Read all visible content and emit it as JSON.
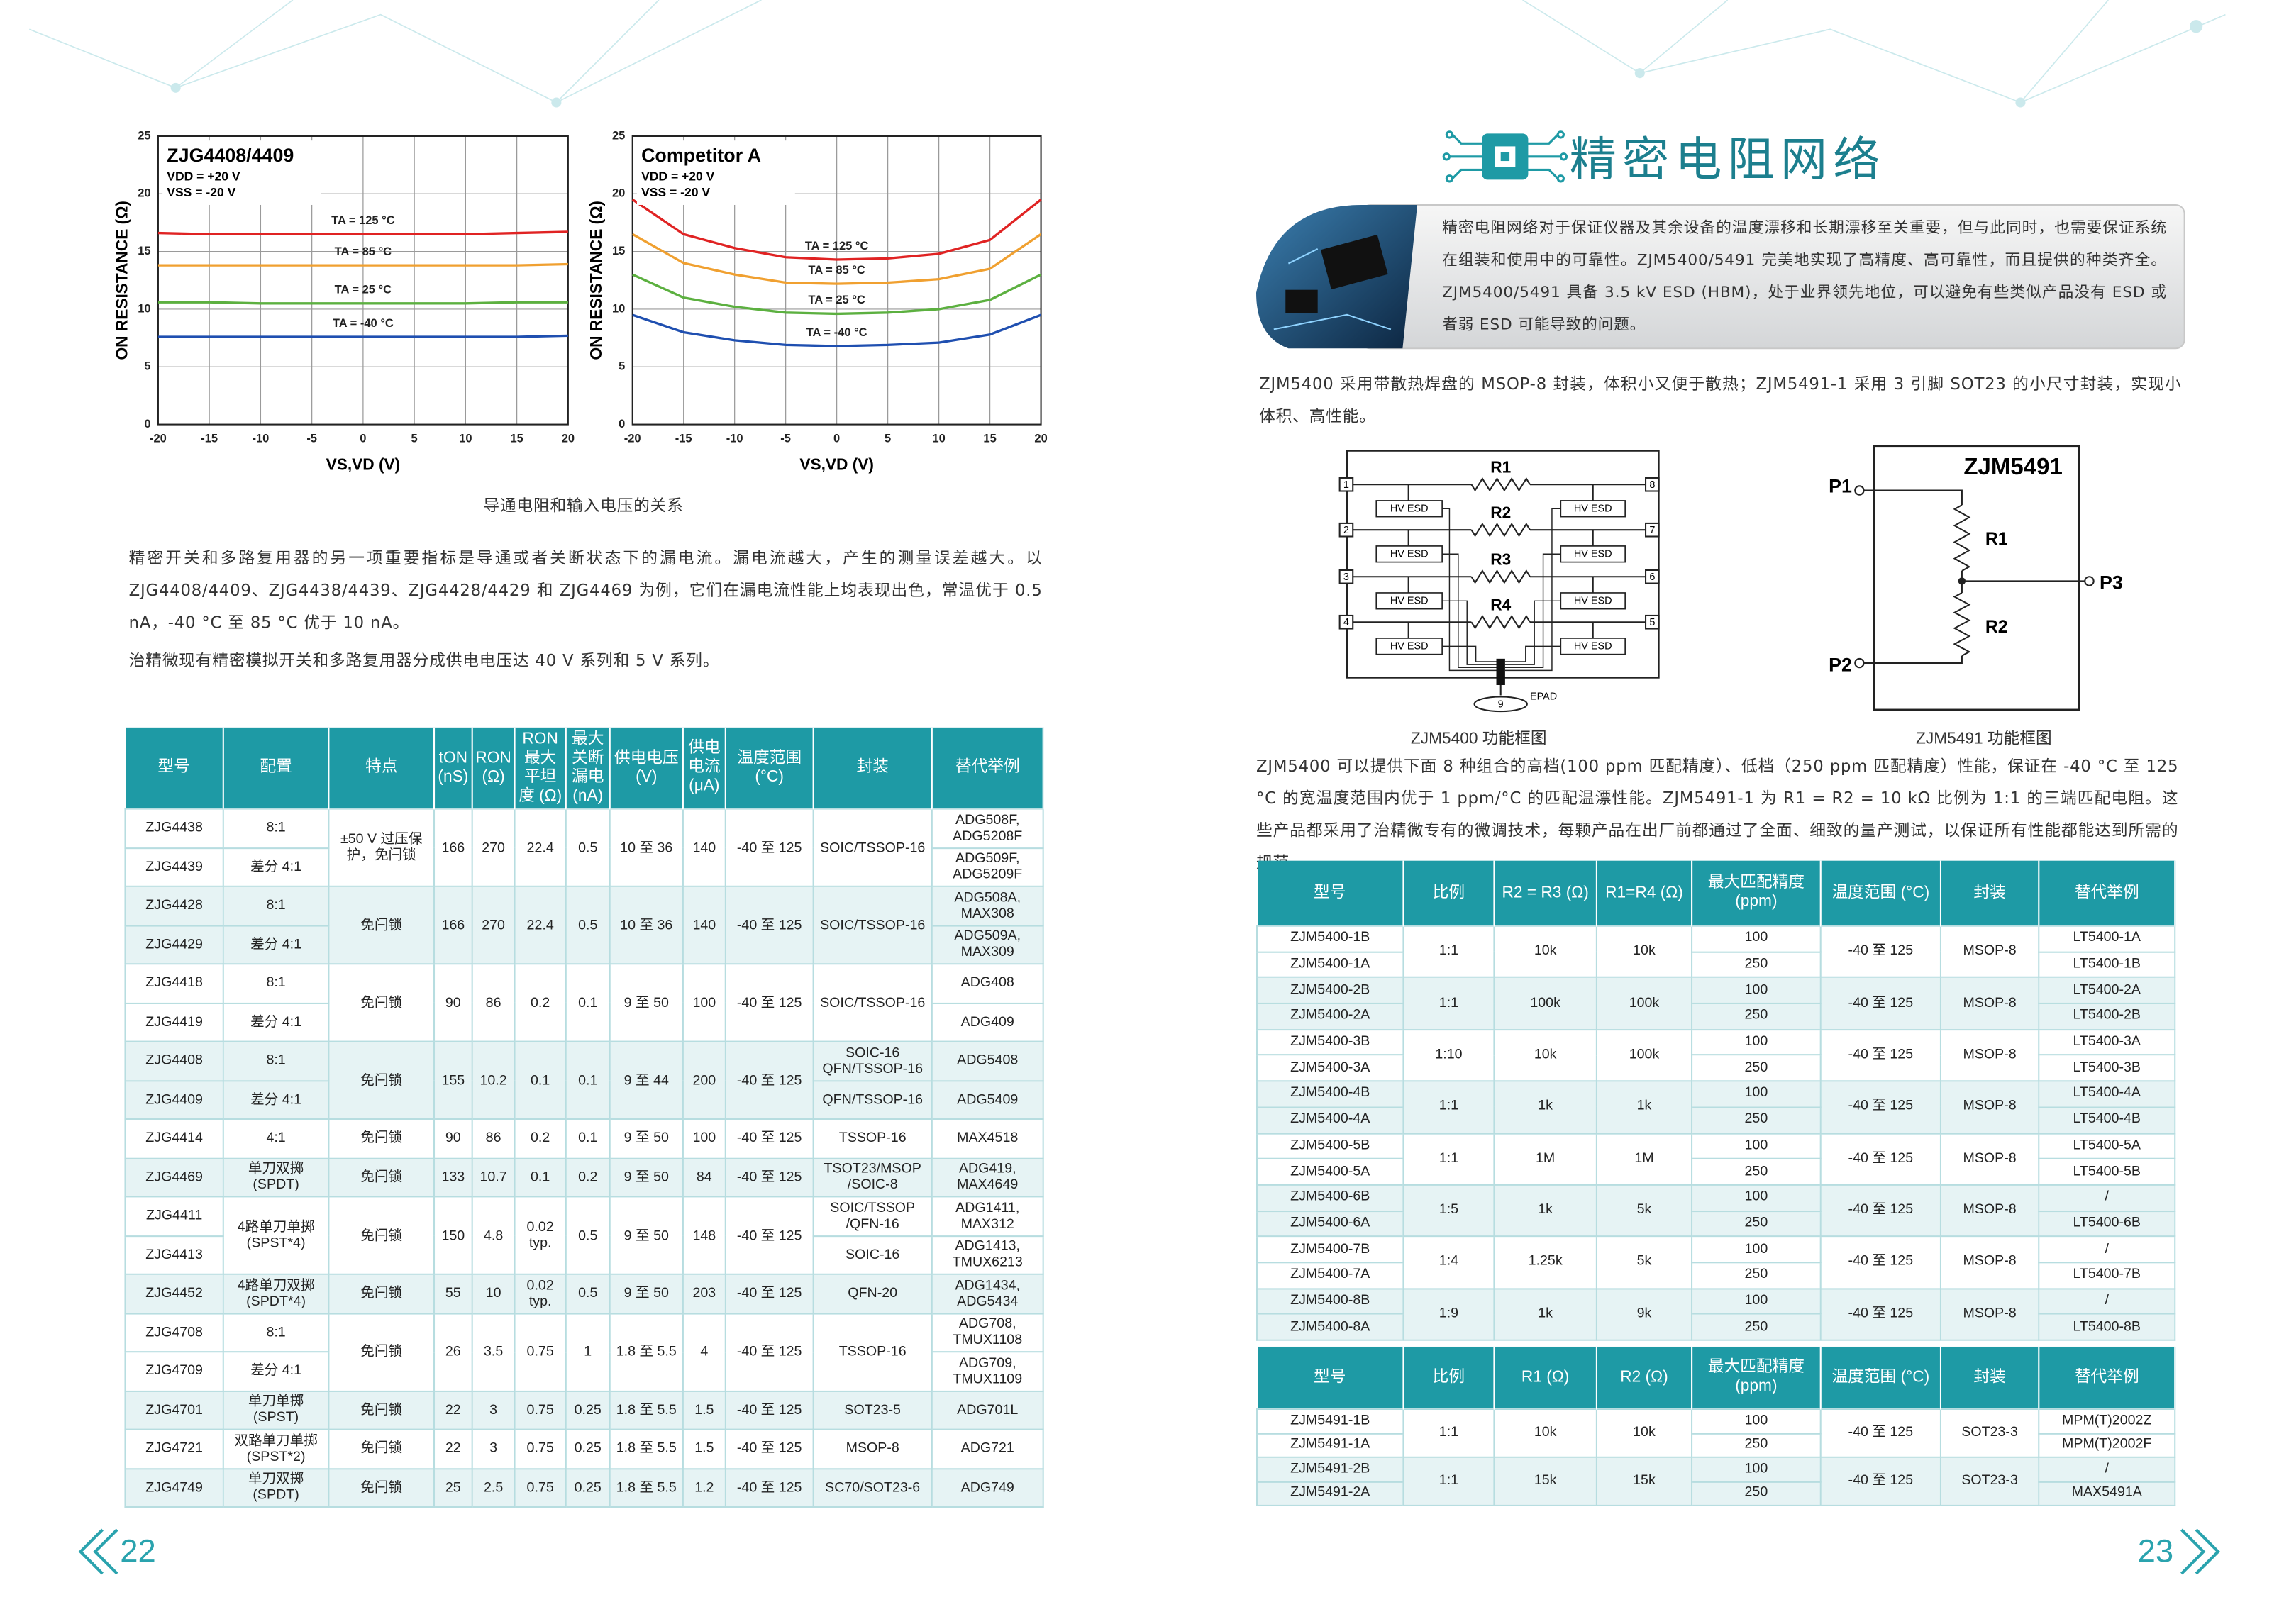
{
  "left_page": {
    "figure": {
      "charts": [
        {
          "type": "line",
          "title": "ZJG4408/4409",
          "annotations": [
            "VDD = +20 V",
            "VSS = -20 V"
          ],
          "ylabel": "ON RESISTANCE (Ω)",
          "xlabel": "VS,VD (V)",
          "x": [
            -20,
            -15,
            -10,
            -5,
            0,
            5,
            10,
            15,
            20
          ],
          "xlim": [
            -20,
            20
          ],
          "ylim": [
            0,
            25
          ],
          "xticks": [
            -20,
            -15,
            -10,
            -5,
            0,
            5,
            10,
            15,
            20
          ],
          "yticks": [
            0,
            5,
            10,
            15,
            20,
            25
          ],
          "grid": true,
          "series": [
            {
              "name": "TA = 125 °C",
              "color": "#e02323",
              "values": [
                16.6,
                16.5,
                16.5,
                16.5,
                16.5,
                16.5,
                16.5,
                16.6,
                16.7
              ]
            },
            {
              "name": "TA = 85 °C",
              "color": "#f0a030",
              "values": [
                13.8,
                13.8,
                13.8,
                13.8,
                13.8,
                13.8,
                13.8,
                13.8,
                13.9
              ]
            },
            {
              "name": "TA = 25 °C",
              "color": "#5cb040",
              "values": [
                10.6,
                10.6,
                10.5,
                10.5,
                10.5,
                10.5,
                10.5,
                10.6,
                10.6
              ]
            },
            {
              "name": "TA = -40 °C",
              "color": "#1f4fb0",
              "values": [
                7.6,
                7.6,
                7.6,
                7.6,
                7.6,
                7.6,
                7.6,
                7.6,
                7.7
              ]
            }
          ]
        },
        {
          "type": "line",
          "title": "Competitor A",
          "annotations": [
            "VDD = +20 V",
            "VSS = -20 V"
          ],
          "ylabel": "ON RESISTANCE (Ω)",
          "xlabel": "VS,VD (V)",
          "x": [
            -20,
            -15,
            -10,
            -5,
            0,
            5,
            10,
            15,
            20
          ],
          "xlim": [
            -20,
            20
          ],
          "ylim": [
            0,
            25
          ],
          "xticks": [
            -20,
            -15,
            -10,
            -5,
            0,
            5,
            10,
            15,
            20
          ],
          "yticks": [
            0,
            5,
            10,
            15,
            20,
            25
          ],
          "grid": true,
          "series": [
            {
              "name": "TA = 125 °C",
              "color": "#e02323",
              "values": [
                19.5,
                16.5,
                15.3,
                14.5,
                14.3,
                14.4,
                14.8,
                16.0,
                19.5
              ]
            },
            {
              "name": "TA = 85 °C",
              "color": "#f0a030",
              "values": [
                16.5,
                14.0,
                13.0,
                12.3,
                12.2,
                12.3,
                12.6,
                13.5,
                16.5
              ]
            },
            {
              "name": "TA = 25 °C",
              "color": "#5cb040",
              "values": [
                13.0,
                11.0,
                10.2,
                9.7,
                9.6,
                9.7,
                10.0,
                10.8,
                13.0
              ]
            },
            {
              "name": "TA = -40 °C",
              "color": "#1f4fb0",
              "values": [
                9.5,
                8.0,
                7.3,
                6.9,
                6.8,
                6.9,
                7.1,
                7.8,
                9.5
              ]
            }
          ]
        }
      ],
      "caption": "导通电阻和输入电压的关系"
    },
    "paragraphs": [
      "精密开关和多路复用器的另一项重要指标是导通或者关断状态下的漏电流。漏电流越大，产生的测量误差越大。以 ZJG4408/4409、ZJG4438/4439、ZJG4428/4429 和 ZJG4469 为例，它们在漏电流性能上均表现出色，常温优于 0.5 nA，-40 °C 至 85 °C 优于 10 nA。",
      "治精微现有精密模拟开关和多路复用器分成供电电压达 40 V 系列和 5 V 系列。"
    ],
    "table": {
      "headers": [
        "型号",
        "配置",
        "特点",
        "tON (nS)",
        "RON (Ω)",
        "RON 最大平坦度 (Ω)",
        "最大关断漏电 (nA)",
        "供电电压 (V)",
        "供电电流 (μA)",
        "温度范围 (°C)",
        "封装",
        "替代举例"
      ],
      "groups": [
        [
          [
            "ZJG4438",
            "ZJG4439"
          ],
          [
            "8:1",
            "差分 4:1"
          ],
          "±50 V 过压保护，免闩锁",
          "166",
          "270",
          "22.4",
          "0.5",
          "10 至 36",
          "140",
          "-40 至 125",
          "SOIC/TSSOP-16",
          [
            "ADG508F, ADG5208F",
            "ADG509F, ADG5209F"
          ]
        ],
        [
          [
            "ZJG4428",
            "ZJG4429"
          ],
          [
            "8:1",
            "差分 4:1"
          ],
          "免闩锁",
          "166",
          "270",
          "22.4",
          "0.5",
          "10 至 36",
          "140",
          "-40 至 125",
          "SOIC/TSSOP-16",
          [
            "ADG508A, MAX308",
            "ADG509A, MAX309"
          ]
        ],
        [
          [
            "ZJG4418",
            "ZJG4419"
          ],
          [
            "8:1",
            "差分 4:1"
          ],
          "免闩锁",
          "90",
          "86",
          "0.2",
          "0.1",
          "9 至 50",
          "100",
          "-40 至 125",
          "SOIC/TSSOP-16",
          [
            "ADG408",
            "ADG409"
          ]
        ],
        [
          [
            "ZJG4408",
            "ZJG4409"
          ],
          [
            "8:1",
            "差分 4:1"
          ],
          "免闩锁",
          "155",
          "10.2",
          "0.1",
          "0.1",
          "9 至 44",
          "200",
          "-40 至 125",
          [
            "SOIC-16 QFN/TSSOP-16",
            "QFN/TSSOP-16"
          ],
          [
            "ADG5408",
            "ADG5409"
          ]
        ],
        [
          "ZJG4414",
          "4:1",
          "免闩锁",
          "90",
          "86",
          "0.2",
          "0.1",
          "9 至 50",
          "100",
          "-40 至 125",
          "TSSOP-16",
          "MAX4518"
        ],
        [
          "ZJG4469",
          "单刀双掷 (SPDT)",
          "免闩锁",
          "133",
          "10.7",
          "0.1",
          "0.2",
          "9 至 50",
          "84",
          "-40 至 125",
          "TSOT23/MSOP /SOIC-8",
          "ADG419, MAX4649"
        ],
        [
          [
            "ZJG4411",
            "ZJG4413"
          ],
          "4路单刀单掷 (SPST*4)",
          "免闩锁",
          "150",
          "4.8",
          "0.02 typ.",
          "0.5",
          "9 至 50",
          "148",
          "-40 至 125",
          [
            "SOIC/TSSOP /QFN-16",
            "SOIC-16"
          ],
          [
            "ADG1411, MAX312",
            "ADG1413, TMUX6213"
          ]
        ],
        [
          "ZJG4452",
          "4路单刀双掷 (SPDT*4)",
          "免闩锁",
          "55",
          "10",
          "0.02 typ.",
          "0.5",
          "9 至 50",
          "203",
          "-40 至 125",
          "QFN-20",
          "ADG1434, ADG5434"
        ],
        [
          [
            "ZJG4708",
            "ZJG4709"
          ],
          [
            "8:1",
            "差分 4:1"
          ],
          "免闩锁",
          "26",
          "3.5",
          "0.75",
          "1",
          "1.8 至 5.5",
          "4",
          "-40 至 125",
          "TSSOP-16",
          [
            "ADG708, TMUX1108",
            "ADG709, TMUX1109"
          ]
        ],
        [
          "ZJG4701",
          "单刀单掷 (SPST)",
          "免闩锁",
          "22",
          "3",
          "0.75",
          "0.25",
          "1.8 至 5.5",
          "1.5",
          "-40 至 125",
          "SOT23-5",
          "ADG701L"
        ],
        [
          "ZJG4721",
          "双路单刀单掷 (SPST*2)",
          "免闩锁",
          "22",
          "3",
          "0.75",
          "0.25",
          "1.8 至 5.5",
          "1.5",
          "-40 至 125",
          "MSOP-8",
          "ADG721"
        ],
        [
          "ZJG4749",
          "单刀双掷 (SPDT)",
          "免闩锁",
          "25",
          "2.5",
          "0.75",
          "0.25",
          "1.8 至 5.5",
          "1.2",
          "-40 至 125",
          "SC70/SOT23-6",
          "ADG749"
        ]
      ]
    },
    "page_number": "22"
  },
  "right_page": {
    "title": "精密电阻网络",
    "intro": "精密电阻网络对于保证仪器及其余设备的温度漂移和长期漂移至关重要，但与此同时，也需要保证系统在组装和使用中的可靠性。ZJM5400/5491 完美地实现了高精度、高可靠性，而且提供的种类齐全。ZJM5400/5491 具备 3.5 kV ESD (HBM)，处于业界领先地位，可以避免有些类似产品没有 ESD 或者弱 ESD 可能导致的问题。",
    "paragraph1": "ZJM5400 采用带散热焊盘的 MSOP-8 封装，体积小又便于散热；ZJM5491-1 采用 3 引脚 SOT23 的小尺寸封装，实现小体积、高性能。",
    "diagrams": {
      "zjm5400": {
        "pins": [
          "1",
          "2",
          "3",
          "4",
          "5",
          "6",
          "7",
          "8",
          "9"
        ],
        "resistors": [
          "R1",
          "R2",
          "R3",
          "R4"
        ],
        "esd_label": "HV ESD",
        "epad": "EPAD",
        "caption": "ZJM5400 功能框图"
      },
      "zjm5491": {
        "title": "ZJM5491",
        "pins": [
          "P1",
          "P2",
          "P3"
        ],
        "resistors": [
          "R1",
          "R2"
        ],
        "caption": "ZJM5491 功能框图"
      }
    },
    "paragraph2": "ZJM5400 可以提供下面 8 种组合的高档(100 ppm 匹配精度）、低档（250 ppm 匹配精度）性能，保证在 -40 °C 至 125 °C 的宽温度范围内优于 1 ppm/°C 的匹配温漂性能。ZJM5491-1 为 R1 = R2 = 10 kΩ 比例为 1:1 的三端匹配电阻。这些产品都采用了治精微专有的微调技术，每颗产品在出厂前都通过了全面、细致的量产测试，以保证所有性能都能达到所需的规范。",
    "table1": {
      "headers": [
        "型号",
        "比例",
        "R2 = R3 (Ω)",
        "R1=R4 (Ω)",
        "最大匹配精度 (ppm)",
        "温度范围 (°C)",
        "封装",
        "替代举例"
      ],
      "groups": [
        [
          [
            "ZJM5400-1B",
            "ZJM5400-1A"
          ],
          "1:1",
          "10k",
          "10k",
          [
            "100",
            "250"
          ],
          "-40 至 125",
          "MSOP-8",
          [
            "LT5400-1A",
            "LT5400-1B"
          ]
        ],
        [
          [
            "ZJM5400-2B",
            "ZJM5400-2A"
          ],
          "1:1",
          "100k",
          "100k",
          [
            "100",
            "250"
          ],
          "-40 至 125",
          "MSOP-8",
          [
            "LT5400-2A",
            "LT5400-2B"
          ]
        ],
        [
          [
            "ZJM5400-3B",
            "ZJM5400-3A"
          ],
          "1:10",
          "10k",
          "100k",
          [
            "100",
            "250"
          ],
          "-40 至 125",
          "MSOP-8",
          [
            "LT5400-3A",
            "LT5400-3B"
          ]
        ],
        [
          [
            "ZJM5400-4B",
            "ZJM5400-4A"
          ],
          "1:1",
          "1k",
          "1k",
          [
            "100",
            "250"
          ],
          "-40 至 125",
          "MSOP-8",
          [
            "LT5400-4A",
            "LT5400-4B"
          ]
        ],
        [
          [
            "ZJM5400-5B",
            "ZJM5400-5A"
          ],
          "1:1",
          "1M",
          "1M",
          [
            "100",
            "250"
          ],
          "-40 至 125",
          "MSOP-8",
          [
            "LT5400-5A",
            "LT5400-5B"
          ]
        ],
        [
          [
            "ZJM5400-6B",
            "ZJM5400-6A"
          ],
          "1:5",
          "1k",
          "5k",
          [
            "100",
            "250"
          ],
          "-40 至 125",
          "MSOP-8",
          [
            "/",
            "LT5400-6B"
          ]
        ],
        [
          [
            "ZJM5400-7B",
            "ZJM5400-7A"
          ],
          "1:4",
          "1.25k",
          "5k",
          [
            "100",
            "250"
          ],
          "-40 至 125",
          "MSOP-8",
          [
            "/",
            "LT5400-7B"
          ]
        ],
        [
          [
            "ZJM5400-8B",
            "ZJM5400-8A"
          ],
          "1:9",
          "1k",
          "9k",
          [
            "100",
            "250"
          ],
          "-40 至 125",
          "MSOP-8",
          [
            "/",
            "LT5400-8B"
          ]
        ]
      ]
    },
    "table2": {
      "headers": [
        "型号",
        "比例",
        "R1 (Ω)",
        "R2 (Ω)",
        "最大匹配精度 (ppm)",
        "温度范围 (°C)",
        "封装",
        "替代举例"
      ],
      "groups": [
        [
          [
            "ZJM5491-1B",
            "ZJM5491-1A"
          ],
          "1:1",
          "10k",
          "10k",
          [
            "100",
            "250"
          ],
          "-40 至 125",
          "SOT23-3",
          [
            "MPM(T)2002Z",
            "MPM(T)2002F"
          ]
        ],
        [
          [
            "ZJM5491-2B",
            "ZJM5491-2A"
          ],
          "1:1",
          "15k",
          "15k",
          [
            "100",
            "250"
          ],
          "-40 至 125",
          "SOT23-3",
          [
            "/",
            "MAX5491A"
          ]
        ]
      ]
    },
    "page_number": "23"
  }
}
